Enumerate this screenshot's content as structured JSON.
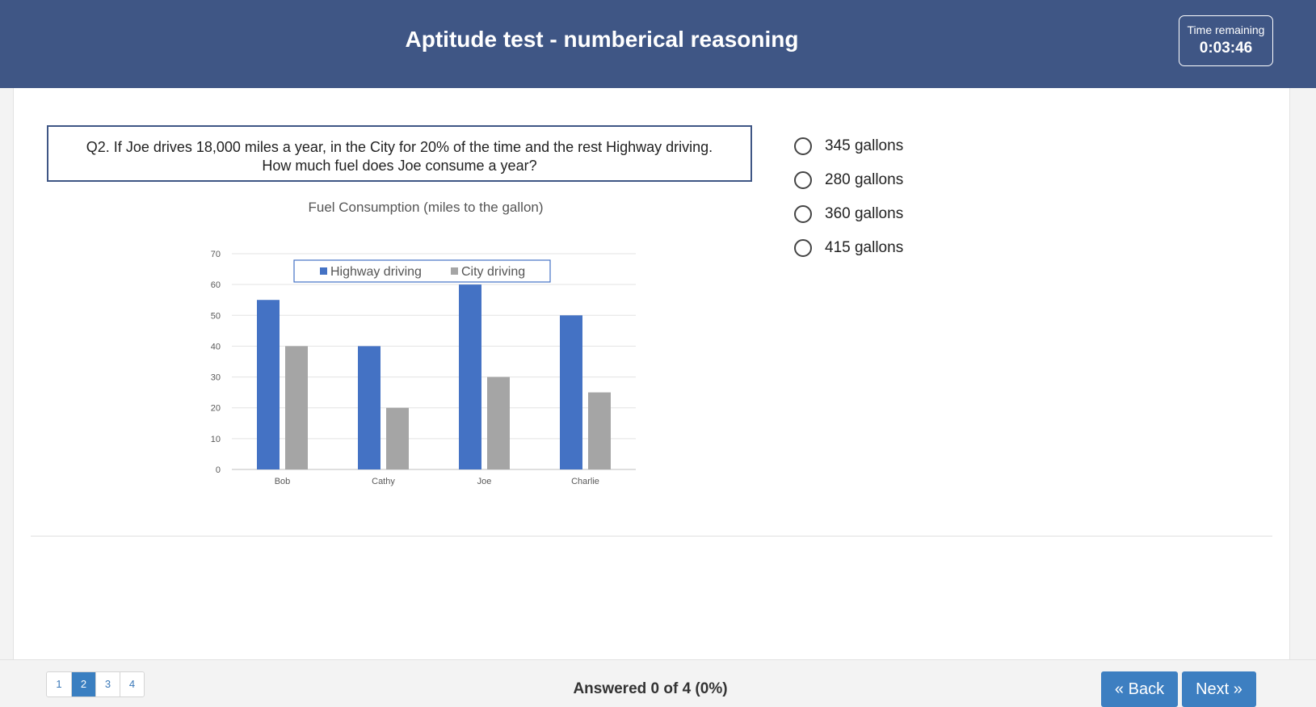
{
  "header": {
    "title": "Aptitude test - numberical reasoning",
    "time_label": "Time remaining",
    "time_value": "0:03:46"
  },
  "question": {
    "line1": "Q2. If Joe drives 18,000 miles a year, in the City for 20% of the time and the rest Highway driving.",
    "line2": "How much fuel does Joe consume a year?"
  },
  "options": [
    {
      "label": "345 gallons",
      "selected": false
    },
    {
      "label": "280 gallons",
      "selected": false
    },
    {
      "label": "360 gallons",
      "selected": false
    },
    {
      "label": "415 gallons",
      "selected": false
    }
  ],
  "chart_data": {
    "type": "bar",
    "title": "Fuel Consumption (miles to the gallon)",
    "categories": [
      "Bob",
      "Cathy",
      "Joe",
      "Charlie"
    ],
    "series": [
      {
        "name": "Highway driving",
        "values": [
          55,
          40,
          60,
          50
        ],
        "color": "#4472c4"
      },
      {
        "name": "City driving",
        "values": [
          40,
          20,
          30,
          25
        ],
        "color": "#a5a5a5"
      }
    ],
    "ylim": [
      0,
      70
    ],
    "yticks": [
      0,
      10,
      20,
      30,
      40,
      50,
      60,
      70
    ],
    "grid": true,
    "legend": "top"
  },
  "footer": {
    "pages": [
      "1",
      "2",
      "3",
      "4"
    ],
    "current_page": "2",
    "answered": "Answered 0 of 4 (0%)",
    "back_label": "« Back",
    "next_label": "Next »"
  }
}
